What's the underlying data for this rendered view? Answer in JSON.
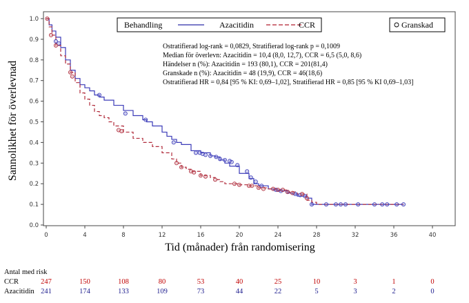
{
  "chart_data": {
    "type": "line",
    "subtype": "kaplan-meier",
    "title": "",
    "xlabel": "Tid (månader) från randomisering",
    "ylabel": "Sannolikhet för överlevnad",
    "xlim": [
      0,
      40
    ],
    "ylim": [
      0.0,
      1.0
    ],
    "x_ticks": [
      0,
      4,
      8,
      12,
      16,
      20,
      24,
      28,
      32,
      36,
      40
    ],
    "y_ticks": [
      0.0,
      0.1,
      0.2,
      0.3,
      0.4,
      0.5,
      0.6,
      0.7,
      0.8,
      0.9,
      1.0
    ],
    "y_tick_labels": [
      "0.0",
      "0.1",
      "0.2",
      "0.3",
      "0.4",
      "0.5",
      "0.6",
      "0.7",
      "0.8",
      "0.9",
      "1.0"
    ],
    "grid": false,
    "legend": {
      "title": "Behandling",
      "placement": "top",
      "entries": [
        {
          "label": "Azacitidin",
          "color": "#2a2aa8",
          "style": "solid"
        },
        {
          "label": "CCR",
          "color": "#b01c2e",
          "style": "dashed"
        }
      ],
      "censor_label": "Granskad",
      "censor_placement": "top-right"
    },
    "annotations": [
      "Ostratifierad log-rank = 0,0829, Stratifierad log-rank p = 0,1009",
      "Median för överlevn: Azacitidin = 10,4 (8,0, 12,7), CCR = 6,5 (5,0, 8,6)",
      "Händelser n (%): Azacitidin = 193 (80,1), CCR = 201(81,4)",
      "Granskade n (%): Azacitidin = 48 (19,9), CCR = 46(18,6)",
      "Ostratifierad HR = 0,84 [95 % KI: 0,69–1,02], Stratifierad HR = 0,85 [95 % KI 0,69–1,03]"
    ],
    "series": [
      {
        "name": "Azacitidin",
        "color": "#3a3ab8",
        "style": "solid",
        "x": [
          0,
          0.3,
          0.6,
          1.0,
          1.5,
          2.0,
          2.5,
          3.0,
          3.5,
          4.0,
          4.5,
          5.0,
          5.5,
          6.0,
          7.0,
          8.0,
          9.0,
          10.0,
          10.4,
          11.0,
          12.0,
          12.5,
          13.0,
          13.5,
          14.0,
          15.0,
          16.0,
          17.0,
          17.5,
          18.0,
          18.5,
          19.0,
          20.0,
          21.0,
          21.5,
          22.0,
          23.0,
          23.5,
          24.0,
          25.0,
          25.5,
          26.0,
          27.0,
          27.5,
          28.0,
          30.0,
          32.0,
          34.0,
          36.0,
          37.0
        ],
        "y": [
          1.0,
          0.97,
          0.94,
          0.91,
          0.86,
          0.8,
          0.75,
          0.71,
          0.68,
          0.665,
          0.65,
          0.63,
          0.62,
          0.605,
          0.58,
          0.555,
          0.53,
          0.51,
          0.5,
          0.48,
          0.45,
          0.43,
          0.415,
          0.4,
          0.39,
          0.36,
          0.35,
          0.335,
          0.33,
          0.315,
          0.3,
          0.285,
          0.25,
          0.225,
          0.2,
          0.19,
          0.175,
          0.17,
          0.165,
          0.155,
          0.15,
          0.14,
          0.13,
          0.1,
          0.1,
          0.1,
          0.1,
          0.1,
          0.1,
          0.1
        ],
        "censored_x": [
          1.0,
          1.3,
          5.5,
          8.2,
          10.3,
          13.2,
          15.5,
          15.9,
          16.2,
          16.5,
          17.0,
          17.6,
          18.0,
          18.5,
          19.0,
          19.2,
          19.8,
          20.8,
          21.2,
          21.7,
          22.3,
          23.8,
          24.3,
          25.0,
          25.8,
          26.3,
          26.8,
          27.5,
          29.0,
          30.0,
          30.5,
          31.0,
          32.3,
          34.0,
          34.8,
          35.3,
          36.3,
          37.0
        ],
        "censored_y": [
          0.89,
          0.88,
          0.63,
          0.54,
          0.51,
          0.4,
          0.35,
          0.35,
          0.345,
          0.34,
          0.335,
          0.33,
          0.32,
          0.315,
          0.31,
          0.305,
          0.29,
          0.26,
          0.23,
          0.21,
          0.19,
          0.17,
          0.165,
          0.16,
          0.15,
          0.145,
          0.14,
          0.1,
          0.1,
          0.1,
          0.1,
          0.1,
          0.1,
          0.1,
          0.1,
          0.1,
          0.1,
          0.1
        ]
      },
      {
        "name": "CCR",
        "color": "#b02a3a",
        "style": "dashed",
        "x": [
          0,
          0.3,
          0.6,
          1.0,
          1.5,
          2.0,
          2.5,
          3.0,
          3.5,
          4.0,
          4.5,
          5.0,
          5.5,
          6.0,
          6.5,
          7.0,
          8.0,
          9.0,
          10.0,
          11.0,
          12.0,
          13.0,
          13.5,
          14.0,
          14.5,
          15.0,
          16.0,
          17.0,
          17.5,
          18.0,
          18.5,
          19.0,
          20.0,
          21.0,
          22.0,
          23.0,
          24.0,
          25.0,
          26.0,
          27.0,
          27.5,
          28.0,
          30.0,
          32.0,
          34.0,
          36.0,
          37.0
        ],
        "y": [
          1.0,
          0.96,
          0.92,
          0.87,
          0.82,
          0.78,
          0.74,
          0.69,
          0.64,
          0.61,
          0.58,
          0.55,
          0.53,
          0.52,
          0.5,
          0.48,
          0.45,
          0.42,
          0.4,
          0.38,
          0.35,
          0.32,
          0.3,
          0.28,
          0.27,
          0.26,
          0.24,
          0.23,
          0.22,
          0.21,
          0.2,
          0.2,
          0.195,
          0.19,
          0.18,
          0.175,
          0.17,
          0.16,
          0.15,
          0.12,
          0.11,
          0.1,
          0.1,
          0.1,
          0.1,
          0.1,
          0.1
        ],
        "censored_x": [
          0.1,
          0.5,
          1.0,
          2.5,
          2.7,
          7.5,
          7.8,
          13.5,
          14.0,
          15.0,
          15.3,
          16.0,
          16.5,
          17.5,
          19.5,
          20.0,
          21.0,
          21.3,
          22.0,
          22.5,
          23.5,
          24.0,
          24.5,
          25.0,
          25.5,
          26.5,
          27.0
        ],
        "censored_y": [
          1.0,
          0.92,
          0.87,
          0.74,
          0.72,
          0.46,
          0.455,
          0.3,
          0.28,
          0.26,
          0.255,
          0.24,
          0.235,
          0.22,
          0.2,
          0.195,
          0.19,
          0.19,
          0.18,
          0.175,
          0.175,
          0.17,
          0.17,
          0.16,
          0.155,
          0.15,
          0.13
        ]
      }
    ],
    "risk_table": {
      "title": "Antal med risk",
      "timepoints": [
        0,
        4,
        8,
        12,
        16,
        20,
        24,
        28,
        32,
        36,
        40
      ],
      "rows": [
        {
          "label": "CCR",
          "color": "#c00000",
          "values": [
            247,
            150,
            108,
            80,
            53,
            40,
            25,
            10,
            3,
            1,
            0
          ]
        },
        {
          "label": "Azacitidin",
          "color": "#1a1a8c",
          "values": [
            241,
            174,
            133,
            109,
            73,
            44,
            22,
            5,
            3,
            2,
            0
          ]
        }
      ]
    }
  }
}
